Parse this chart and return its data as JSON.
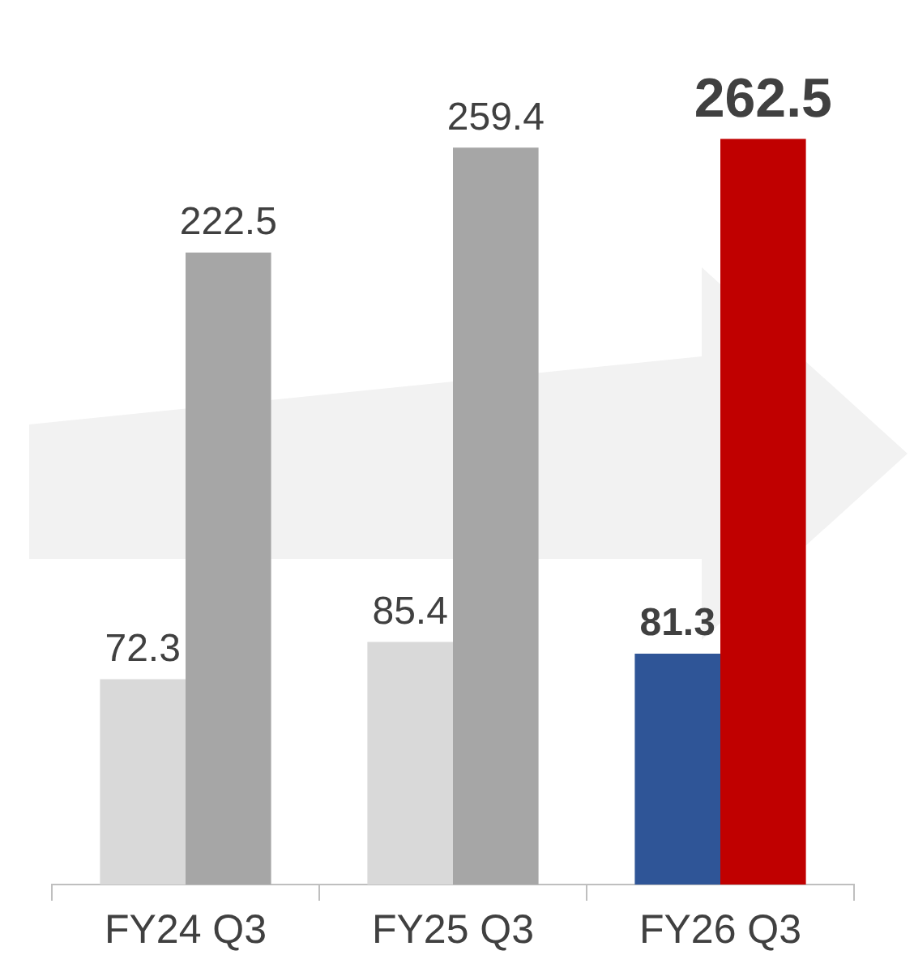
{
  "chart_data": {
    "type": "bar",
    "categories": [
      "FY24 Q3",
      "FY25 Q3",
      "FY26 Q3"
    ],
    "series": [
      {
        "colors": [
          "#d9d9d9",
          "#d9d9d9",
          "#2f5597"
        ],
        "values": [
          72.3,
          85.4,
          81.3
        ]
      },
      {
        "colors": [
          "#a6a6a6",
          "#a6a6a6",
          "#c00000"
        ],
        "values": [
          222.5,
          259.4,
          262.5
        ]
      }
    ],
    "tick_labels": "x",
    "data_labels": true,
    "grid": false,
    "legend": false
  }
}
